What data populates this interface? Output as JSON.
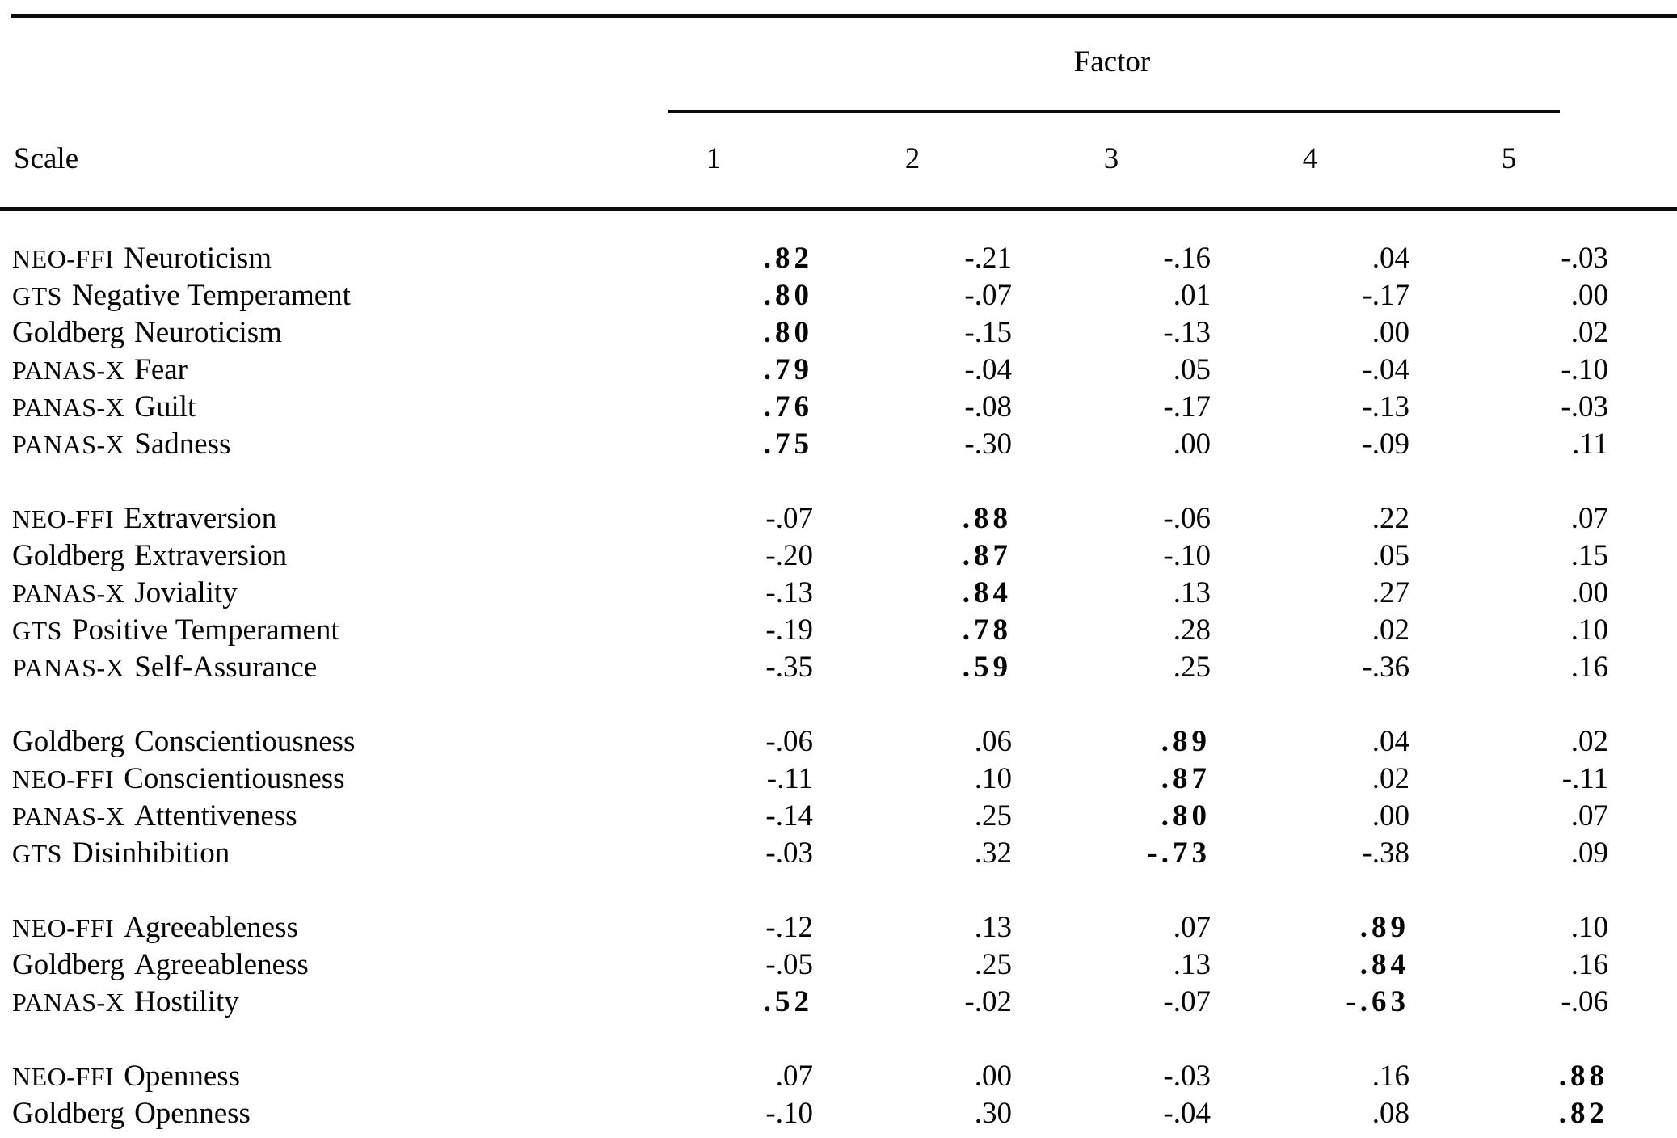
{
  "table": {
    "title_header": "Factor",
    "scale_header": "Scale",
    "factor_columns": [
      "1",
      "2",
      "3",
      "4",
      "5"
    ],
    "text_color": "#050505",
    "background_color": "#ffffff",
    "groups": [
      {
        "rows": [
          {
            "scale_prefix": "NEO-FFI",
            "scale_name": "Neuroticism",
            "values": [
              ".82",
              "-.21",
              "-.16",
              ".04",
              "-.03"
            ],
            "bold": [
              0
            ]
          },
          {
            "scale_prefix": "GTS",
            "scale_name": "Negative Temperament",
            "values": [
              ".80",
              "-.07",
              ".01",
              "-.17",
              ".00"
            ],
            "bold": [
              0
            ]
          },
          {
            "scale_prefix": "Goldberg",
            "scale_name": "Neuroticism",
            "values": [
              ".80",
              "-.15",
              "-.13",
              ".00",
              ".02"
            ],
            "bold": [
              0
            ]
          },
          {
            "scale_prefix": "PANAS-X",
            "scale_name": "Fear",
            "values": [
              ".79",
              "-.04",
              ".05",
              "-.04",
              "-.10"
            ],
            "bold": [
              0
            ]
          },
          {
            "scale_prefix": "PANAS-X",
            "scale_name": "Guilt",
            "values": [
              ".76",
              "-.08",
              "-.17",
              "-.13",
              "-.03"
            ],
            "bold": [
              0
            ]
          },
          {
            "scale_prefix": "PANAS-X",
            "scale_name": "Sadness",
            "values": [
              ".75",
              "-.30",
              ".00",
              "-.09",
              ".11"
            ],
            "bold": [
              0
            ]
          }
        ]
      },
      {
        "rows": [
          {
            "scale_prefix": "NEO-FFI",
            "scale_name": "Extraversion",
            "values": [
              "-.07",
              ".88",
              "-.06",
              ".22",
              ".07"
            ],
            "bold": [
              1
            ]
          },
          {
            "scale_prefix": "Goldberg",
            "scale_name": "Extraversion",
            "values": [
              "-.20",
              ".87",
              "-.10",
              ".05",
              ".15"
            ],
            "bold": [
              1
            ]
          },
          {
            "scale_prefix": "PANAS-X",
            "scale_name": "Joviality",
            "values": [
              "-.13",
              ".84",
              ".13",
              ".27",
              ".00"
            ],
            "bold": [
              1
            ]
          },
          {
            "scale_prefix": "GTS",
            "scale_name": "Positive Temperament",
            "values": [
              "-.19",
              ".78",
              ".28",
              ".02",
              ".10"
            ],
            "bold": [
              1
            ]
          },
          {
            "scale_prefix": "PANAS-X",
            "scale_name": "Self-Assurance",
            "values": [
              "-.35",
              ".59",
              ".25",
              "-.36",
              ".16"
            ],
            "bold": [
              1
            ]
          }
        ]
      },
      {
        "rows": [
          {
            "scale_prefix": "Goldberg",
            "scale_name": "Conscientiousness",
            "values": [
              "-.06",
              ".06",
              ".89",
              ".04",
              ".02"
            ],
            "bold": [
              2
            ]
          },
          {
            "scale_prefix": "NEO-FFI",
            "scale_name": "Conscientiousness",
            "values": [
              "-.11",
              ".10",
              ".87",
              ".02",
              "-.11"
            ],
            "bold": [
              2
            ]
          },
          {
            "scale_prefix": "PANAS-X",
            "scale_name": "Attentiveness",
            "values": [
              "-.14",
              ".25",
              ".80",
              ".00",
              ".07"
            ],
            "bold": [
              2
            ]
          },
          {
            "scale_prefix": "GTS",
            "scale_name": "Disinhibition",
            "values": [
              "-.03",
              ".32",
              "-.73",
              "-.38",
              ".09"
            ],
            "bold": [
              2
            ]
          }
        ]
      },
      {
        "rows": [
          {
            "scale_prefix": "NEO-FFI",
            "scale_name": "Agreeableness",
            "values": [
              "-.12",
              ".13",
              ".07",
              ".89",
              ".10"
            ],
            "bold": [
              3
            ]
          },
          {
            "scale_prefix": "Goldberg",
            "scale_name": "Agreeableness",
            "values": [
              "-.05",
              ".25",
              ".13",
              ".84",
              ".16"
            ],
            "bold": [
              3
            ]
          },
          {
            "scale_prefix": "PANAS-X",
            "scale_name": "Hostility",
            "values": [
              ".52",
              "-.02",
              "-.07",
              "-.63",
              "-.06"
            ],
            "bold": [
              0,
              3
            ]
          }
        ]
      },
      {
        "rows": [
          {
            "scale_prefix": "NEO-FFI",
            "scale_name": "Openness",
            "values": [
              ".07",
              ".00",
              "-.03",
              ".16",
              ".88"
            ],
            "bold": [
              4
            ]
          },
          {
            "scale_prefix": "Goldberg",
            "scale_name": "Openness",
            "values": [
              "-.10",
              ".30",
              "-.04",
              ".08",
              ".82"
            ],
            "bold": [
              4
            ]
          }
        ]
      }
    ]
  }
}
